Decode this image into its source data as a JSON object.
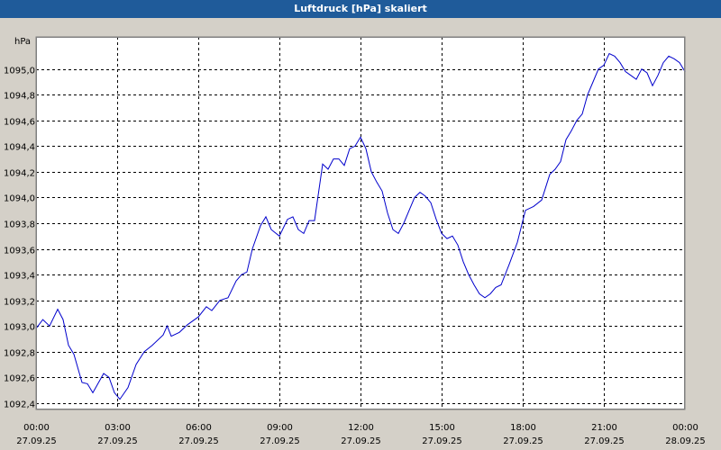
{
  "window": {
    "title": "Luftdruck [hPa] skaliert"
  },
  "colors": {
    "titlebar": "#1f5b9a",
    "line": "#0000cc",
    "plot_bg": "#ffffff",
    "frame_bg": "#d4d0c8"
  },
  "chart_data": {
    "type": "line",
    "title": "Luftdruck [hPa] skaliert",
    "ylabel": "hPa",
    "ylim": [
      1092.35,
      1095.25
    ],
    "xlim": [
      0,
      24
    ],
    "grid": true,
    "y_ticks": [
      1092.4,
      1092.6,
      1092.8,
      1093.0,
      1093.2,
      1093.4,
      1093.6,
      1093.8,
      1094.0,
      1094.2,
      1094.4,
      1094.6,
      1094.8,
      1095.0
    ],
    "y_tick_labels": [
      "1092,4",
      "1092,6",
      "1092,8",
      "1093,0",
      "1093,2",
      "1093,4",
      "1093,6",
      "1093,8",
      "1094,0",
      "1094,2",
      "1094,4",
      "1094,6",
      "1094,8",
      "1095,0"
    ],
    "x_ticks": [
      {
        "hour": 0,
        "time": "00:00",
        "date": "27.09.25"
      },
      {
        "hour": 3,
        "time": "03:00",
        "date": "27.09.25"
      },
      {
        "hour": 6,
        "time": "06:00",
        "date": "27.09.25"
      },
      {
        "hour": 9,
        "time": "09:00",
        "date": "27.09.25"
      },
      {
        "hour": 12,
        "time": "12:00",
        "date": "27.09.25"
      },
      {
        "hour": 15,
        "time": "15:00",
        "date": "27.09.25"
      },
      {
        "hour": 18,
        "time": "18:00",
        "date": "27.09.25"
      },
      {
        "hour": 21,
        "time": "21:00",
        "date": "27.09.25"
      },
      {
        "hour": 24,
        "time": "00:00",
        "date": "28.09.25"
      }
    ],
    "series": [
      {
        "points": [
          [
            0.0,
            1092.98
          ],
          [
            0.25,
            1093.05
          ],
          [
            0.5,
            1093.0
          ],
          [
            0.8,
            1093.13
          ],
          [
            1.0,
            1093.05
          ],
          [
            1.2,
            1092.85
          ],
          [
            1.4,
            1092.78
          ],
          [
            1.7,
            1092.56
          ],
          [
            1.9,
            1092.55
          ],
          [
            2.1,
            1092.48
          ],
          [
            2.5,
            1092.63
          ],
          [
            2.7,
            1092.6
          ],
          [
            2.9,
            1092.48
          ],
          [
            3.1,
            1092.43
          ],
          [
            3.4,
            1092.52
          ],
          [
            3.7,
            1092.7
          ],
          [
            4.0,
            1092.8
          ],
          [
            4.3,
            1092.85
          ],
          [
            4.7,
            1092.93
          ],
          [
            4.85,
            1093.0
          ],
          [
            5.0,
            1092.92
          ],
          [
            5.3,
            1092.95
          ],
          [
            5.6,
            1093.01
          ],
          [
            6.0,
            1093.07
          ],
          [
            6.3,
            1093.15
          ],
          [
            6.5,
            1093.12
          ],
          [
            6.8,
            1093.2
          ],
          [
            7.1,
            1093.22
          ],
          [
            7.4,
            1093.35
          ],
          [
            7.6,
            1093.4
          ],
          [
            7.8,
            1093.42
          ],
          [
            8.0,
            1093.6
          ],
          [
            8.3,
            1093.78
          ],
          [
            8.5,
            1093.85
          ],
          [
            8.7,
            1093.75
          ],
          [
            9.0,
            1093.7
          ],
          [
            9.3,
            1093.83
          ],
          [
            9.5,
            1093.85
          ],
          [
            9.7,
            1093.75
          ],
          [
            9.9,
            1093.72
          ],
          [
            10.1,
            1093.82
          ],
          [
            10.3,
            1093.82
          ],
          [
            10.6,
            1094.26
          ],
          [
            10.8,
            1094.22
          ],
          [
            11.0,
            1094.3
          ],
          [
            11.2,
            1094.3
          ],
          [
            11.4,
            1094.25
          ],
          [
            11.6,
            1094.38
          ],
          [
            11.8,
            1094.4
          ],
          [
            12.0,
            1094.47
          ],
          [
            12.2,
            1094.38
          ],
          [
            12.4,
            1094.2
          ],
          [
            12.6,
            1094.12
          ],
          [
            12.8,
            1094.05
          ],
          [
            13.0,
            1093.88
          ],
          [
            13.2,
            1093.75
          ],
          [
            13.4,
            1093.72
          ],
          [
            13.6,
            1093.8
          ],
          [
            13.8,
            1093.9
          ],
          [
            14.0,
            1094.0
          ],
          [
            14.2,
            1094.04
          ],
          [
            14.4,
            1094.01
          ],
          [
            14.6,
            1093.96
          ],
          [
            14.8,
            1093.83
          ],
          [
            15.0,
            1093.72
          ],
          [
            15.2,
            1093.68
          ],
          [
            15.4,
            1093.7
          ],
          [
            15.6,
            1093.63
          ],
          [
            15.8,
            1093.5
          ],
          [
            16.0,
            1093.4
          ],
          [
            16.2,
            1093.32
          ],
          [
            16.4,
            1093.25
          ],
          [
            16.6,
            1093.22
          ],
          [
            16.8,
            1093.25
          ],
          [
            17.0,
            1093.3
          ],
          [
            17.2,
            1093.32
          ],
          [
            17.5,
            1093.48
          ],
          [
            17.8,
            1093.65
          ],
          [
            18.1,
            1093.9
          ],
          [
            18.4,
            1093.93
          ],
          [
            18.7,
            1093.98
          ],
          [
            19.0,
            1094.18
          ],
          [
            19.2,
            1094.22
          ],
          [
            19.4,
            1094.28
          ],
          [
            19.6,
            1094.45
          ],
          [
            19.8,
            1094.52
          ],
          [
            20.0,
            1094.6
          ],
          [
            20.2,
            1094.65
          ],
          [
            20.4,
            1094.8
          ],
          [
            20.6,
            1094.9
          ],
          [
            20.8,
            1095.0
          ],
          [
            21.0,
            1095.03
          ],
          [
            21.2,
            1095.12
          ],
          [
            21.4,
            1095.1
          ],
          [
            21.6,
            1095.05
          ],
          [
            21.8,
            1094.98
          ],
          [
            22.0,
            1094.95
          ],
          [
            22.2,
            1094.92
          ],
          [
            22.4,
            1095.0
          ],
          [
            22.6,
            1094.97
          ],
          [
            22.8,
            1094.87
          ],
          [
            23.0,
            1094.95
          ],
          [
            23.2,
            1095.05
          ],
          [
            23.4,
            1095.1
          ],
          [
            23.6,
            1095.08
          ],
          [
            23.8,
            1095.05
          ],
          [
            24.0,
            1094.98
          ]
        ]
      }
    ]
  }
}
